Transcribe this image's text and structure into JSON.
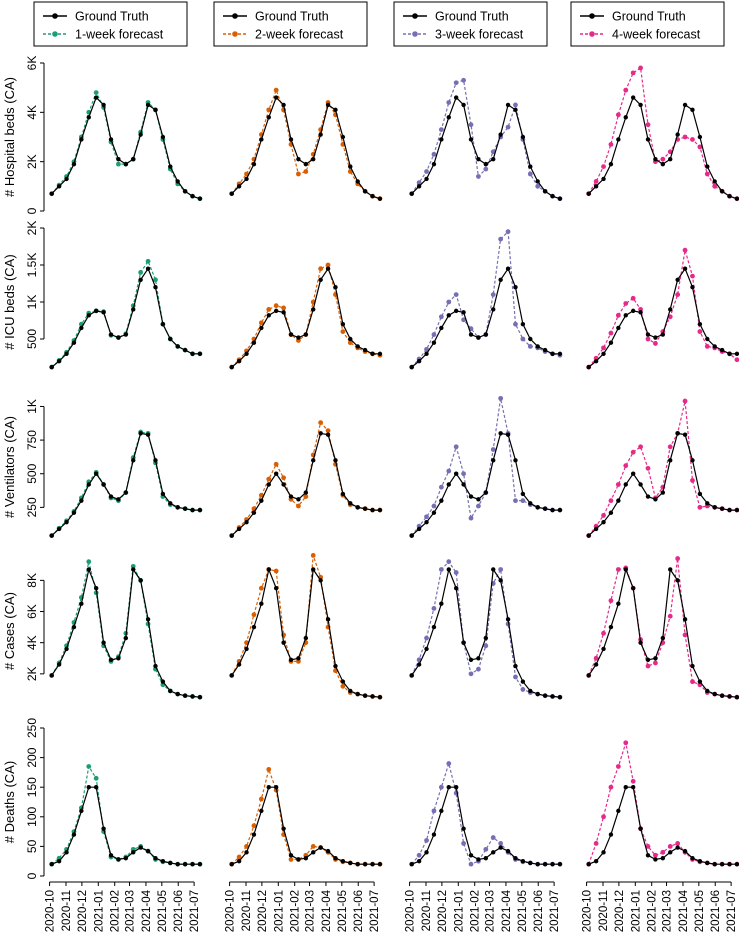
{
  "figure": {
    "x_tick_labels": [
      "2020-10",
      "2020-11",
      "2020-12",
      "2021-01",
      "2021-02",
      "2021-03",
      "2021-04",
      "2021-05",
      "2021-06",
      "2021-07"
    ],
    "truth_color": "#000000",
    "panel_colors": [
      "#1b9e77",
      "#d95f02",
      "#7570b3",
      "#e7298a"
    ],
    "legends": [
      {
        "truth": "Ground Truth",
        "forecast": "1-week forecast"
      },
      {
        "truth": "Ground Truth",
        "forecast": "2-week forecast"
      },
      {
        "truth": "Ground Truth",
        "forecast": "3-week forecast"
      },
      {
        "truth": "Ground Truth",
        "forecast": "4-week forecast"
      }
    ],
    "rows": [
      {
        "ylabel": "# Hospital beds (CA)",
        "ticks": [
          {
            "v": 0,
            "label": "0"
          },
          {
            "v": 2000,
            "label": "2K"
          },
          {
            "v": 4000,
            "label": "4K"
          },
          {
            "v": 6000,
            "label": "6K"
          }
        ]
      },
      {
        "ylabel": "# ICU beds (CA)",
        "ticks": [
          {
            "v": 500,
            "label": "500"
          },
          {
            "v": 1000,
            "label": "1K"
          },
          {
            "v": 1500,
            "label": "1.5K"
          },
          {
            "v": 2000,
            "label": "2K"
          }
        ]
      },
      {
        "ylabel": "# Ventilators (CA)",
        "ticks": [
          {
            "v": 250,
            "label": "250"
          },
          {
            "v": 500,
            "label": "500"
          },
          {
            "v": 750,
            "label": "750"
          },
          {
            "v": 1000,
            "label": "1K"
          }
        ]
      },
      {
        "ylabel": "# Cases (CA)",
        "ticks": [
          {
            "v": 2000,
            "label": "2K"
          },
          {
            "v": 4000,
            "label": "4K"
          },
          {
            "v": 6000,
            "label": "6K"
          },
          {
            "v": 8000,
            "label": "8K"
          }
        ]
      },
      {
        "ylabel": "# Deaths (CA)",
        "ticks": [
          {
            "v": 0,
            "label": "0"
          },
          {
            "v": 50,
            "label": "50"
          },
          {
            "v": 100,
            "label": "100"
          },
          {
            "v": 150,
            "label": "150"
          },
          {
            "v": 200,
            "label": "200"
          },
          {
            "v": 250,
            "label": "250"
          }
        ]
      }
    ]
  },
  "chart_data": {
    "type": "line",
    "x": [
      "2020-10-05",
      "2020-10-19",
      "2020-11-02",
      "2020-11-16",
      "2020-11-30",
      "2020-12-14",
      "2020-12-28",
      "2021-01-11",
      "2021-01-25",
      "2021-02-08",
      "2021-02-22",
      "2021-03-08",
      "2021-03-22",
      "2021-04-05",
      "2021-04-19",
      "2021-05-03",
      "2021-05-17",
      "2021-05-31",
      "2021-06-14",
      "2021-06-28",
      "2021-07-12"
    ],
    "x_range": [
      "2020-09-28",
      "2021-07-14"
    ],
    "panels": [
      {
        "row": "# Hospital beds (CA)",
        "ylim": [
          0,
          6000
        ],
        "truth": [
          700,
          1000,
          1300,
          1900,
          2900,
          3800,
          4600,
          4300,
          2900,
          2100,
          1900,
          2100,
          3100,
          4300,
          4100,
          3000,
          1800,
          1200,
          800,
          600,
          500
        ],
        "forecasts": {
          "1-week": [
            700,
            1050,
            1400,
            2000,
            3000,
            4000,
            4800,
            4200,
            2800,
            1900,
            1900,
            2100,
            3200,
            4400,
            4100,
            2900,
            1700,
            1100,
            800,
            600,
            500
          ],
          "2-week": [
            700,
            1100,
            1500,
            2100,
            3100,
            4100,
            4900,
            4100,
            2700,
            1500,
            1600,
            2300,
            3300,
            4400,
            3900,
            2700,
            1600,
            1100,
            800,
            600,
            500
          ],
          "3-week": [
            700,
            1150,
            1600,
            2300,
            3300,
            4400,
            5200,
            5300,
            3500,
            1400,
            1700,
            2400,
            3000,
            3400,
            4300,
            2900,
            1500,
            1000,
            800,
            600,
            500
          ],
          "4-week": [
            700,
            1200,
            1800,
            2700,
            3900,
            4900,
            5600,
            5800,
            3500,
            2000,
            2100,
            2400,
            2900,
            3000,
            2900,
            2600,
            1500,
            1000,
            800,
            600,
            500
          ]
        }
      },
      {
        "row": "# ICU beds (CA)",
        "ylim": [
          0,
          2000
        ],
        "truth": [
          120,
          200,
          300,
          450,
          650,
          820,
          880,
          860,
          560,
          520,
          560,
          900,
          1300,
          1450,
          1200,
          700,
          500,
          400,
          350,
          300,
          300
        ],
        "forecasts": {
          "1-week": [
            120,
            210,
            320,
            480,
            700,
            850,
            880,
            870,
            550,
            520,
            570,
            950,
            1400,
            1550,
            1300,
            700,
            500,
            400,
            350,
            300,
            300
          ],
          "2-week": [
            120,
            220,
            340,
            500,
            720,
            900,
            950,
            920,
            560,
            480,
            560,
            1000,
            1450,
            1500,
            1100,
            600,
            450,
            380,
            330,
            300,
            280
          ],
          "3-week": [
            120,
            230,
            360,
            560,
            800,
            1000,
            1100,
            760,
            640,
            520,
            560,
            1100,
            1850,
            1950,
            700,
            500,
            400,
            380,
            330,
            300,
            280
          ],
          "4-week": [
            120,
            240,
            380,
            580,
            820,
            980,
            1050,
            900,
            500,
            440,
            600,
            800,
            1100,
            1700,
            1350,
            600,
            400,
            380,
            330,
            300,
            220
          ]
        }
      },
      {
        "row": "# Ventilators (CA)",
        "ylim": [
          0,
          1100
        ],
        "truth": [
          40,
          90,
          140,
          210,
          300,
          420,
          500,
          420,
          330,
          310,
          360,
          600,
          800,
          790,
          600,
          350,
          280,
          250,
          240,
          230,
          230
        ],
        "forecasts": {
          "1-week": [
            40,
            95,
            150,
            220,
            320,
            440,
            510,
            420,
            320,
            300,
            360,
            620,
            810,
            800,
            580,
            330,
            270,
            250,
            240,
            230,
            230
          ],
          "2-week": [
            40,
            100,
            160,
            240,
            340,
            460,
            570,
            470,
            310,
            260,
            330,
            640,
            880,
            820,
            570,
            340,
            270,
            250,
            240,
            230,
            230
          ],
          "3-week": [
            40,
            110,
            180,
            260,
            400,
            520,
            700,
            500,
            170,
            260,
            360,
            680,
            1060,
            800,
            300,
            300,
            270,
            250,
            240,
            230,
            230
          ],
          "4-week": [
            40,
            110,
            190,
            300,
            420,
            560,
            660,
            700,
            540,
            320,
            400,
            700,
            800,
            1040,
            450,
            250,
            260,
            250,
            240,
            230,
            230
          ]
        }
      },
      {
        "row": "# Cases (CA)",
        "ylim": [
          0,
          9500
        ],
        "truth": [
          1900,
          2600,
          3600,
          5000,
          6500,
          8700,
          7500,
          4000,
          2900,
          3000,
          4300,
          8700,
          8000,
          5500,
          2500,
          1500,
          900,
          700,
          600,
          550,
          500
        ],
        "forecasts": {
          "1-week": [
            1900,
            2700,
            3800,
            5300,
            6900,
            9200,
            7200,
            3800,
            2800,
            3100,
            4600,
            8900,
            8000,
            5200,
            2300,
            1300,
            900,
            700,
            600,
            550,
            500
          ],
          "2-week": [
            1900,
            2800,
            4000,
            5800,
            7500,
            8700,
            8600,
            4500,
            2800,
            2800,
            4000,
            9600,
            8200,
            5000,
            2200,
            1200,
            800,
            700,
            600,
            550,
            500
          ],
          "3-week": [
            1900,
            2900,
            4300,
            6200,
            8700,
            9200,
            8500,
            4000,
            2000,
            2300,
            3800,
            7800,
            8700,
            5200,
            1800,
            1000,
            800,
            700,
            600,
            550,
            500
          ],
          "4-week": [
            1900,
            3000,
            4600,
            6700,
            8700,
            8800,
            7500,
            4200,
            2500,
            2700,
            4000,
            5700,
            9400,
            4500,
            1500,
            1300,
            800,
            700,
            600,
            550,
            500
          ]
        }
      },
      {
        "row": "# Deaths (CA)",
        "ylim": [
          0,
          250
        ],
        "truth": [
          20,
          25,
          40,
          70,
          110,
          150,
          150,
          80,
          35,
          28,
          30,
          40,
          48,
          42,
          30,
          25,
          22,
          20,
          20,
          20,
          20
        ],
        "forecasts": {
          "1-week": [
            20,
            30,
            45,
            75,
            115,
            185,
            165,
            75,
            32,
            28,
            32,
            45,
            50,
            42,
            28,
            24,
            22,
            20,
            20,
            20,
            20
          ],
          "2-week": [
            20,
            32,
            50,
            85,
            130,
            180,
            145,
            70,
            28,
            28,
            35,
            50,
            48,
            40,
            28,
            24,
            22,
            20,
            20,
            20,
            20
          ],
          "3-week": [
            20,
            35,
            60,
            110,
            150,
            190,
            140,
            55,
            20,
            25,
            45,
            65,
            55,
            40,
            28,
            24,
            22,
            20,
            20,
            20,
            20
          ],
          "4-week": [
            20,
            55,
            100,
            150,
            185,
            225,
            160,
            80,
            50,
            35,
            40,
            50,
            55,
            40,
            28,
            24,
            22,
            20,
            20,
            20,
            20
          ]
        }
      }
    ]
  }
}
